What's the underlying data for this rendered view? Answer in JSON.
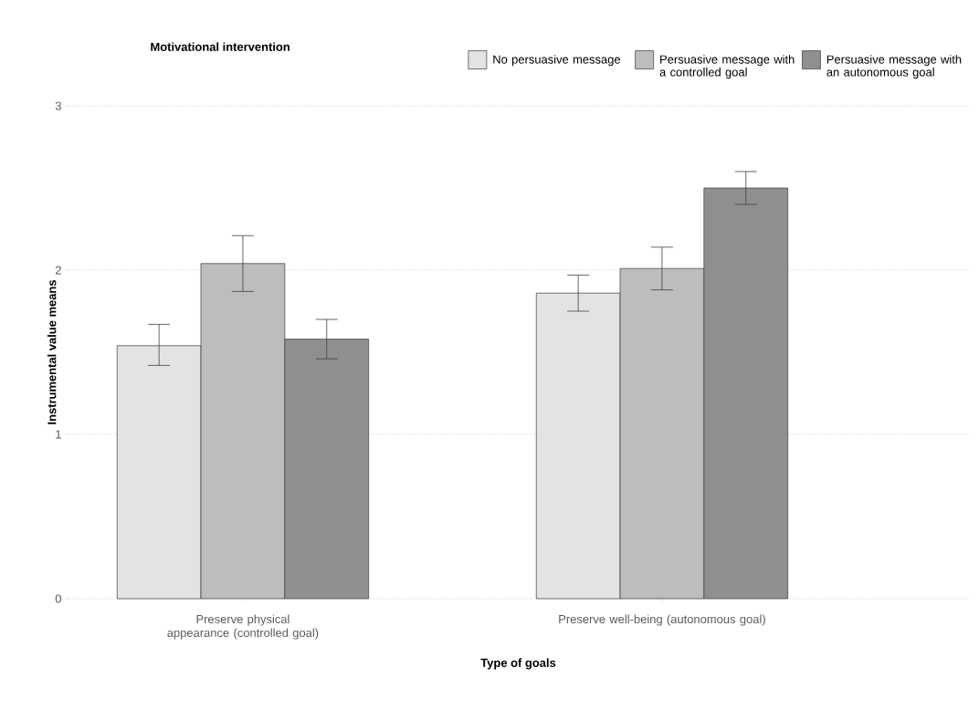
{
  "chart_data": {
    "type": "bar",
    "xlabel": "Type of goals",
    "ylabel": "Instrumental value means",
    "legend_title": "Motivational intervention",
    "legend": "top",
    "grid": "y",
    "categories": [
      "Preserve physical appearance (controlled goal)",
      "Preserve well-being (autonomous goal)"
    ],
    "series": [
      {
        "name": "No persuasive message",
        "color": "#e3e3e3",
        "values": [
          1.54,
          1.86
        ],
        "errors": [
          [
            1.42,
            1.67
          ],
          [
            1.75,
            1.97
          ]
        ]
      },
      {
        "name": "Persuasive message with a controlled goal",
        "color": "#bdbdbd",
        "values": [
          2.04,
          2.01
        ],
        "errors": [
          [
            1.87,
            2.21
          ],
          [
            1.88,
            2.14
          ]
        ]
      },
      {
        "name": "Persuasive message with an autonomous goal",
        "color": "#8f8f8f",
        "values": [
          1.58,
          2.5
        ],
        "errors": [
          [
            1.46,
            1.7
          ],
          [
            2.4,
            2.6
          ]
        ]
      }
    ],
    "ylim": [
      0,
      3
    ],
    "yticks": [
      0,
      1,
      2,
      3
    ]
  }
}
